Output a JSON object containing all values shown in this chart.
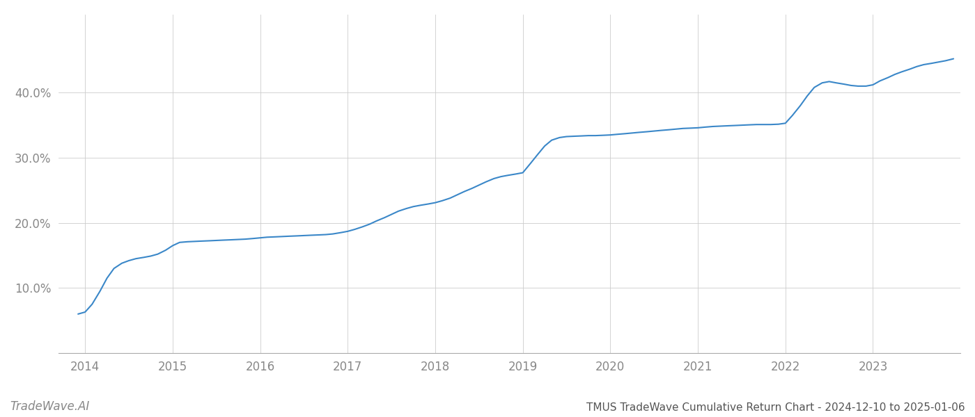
{
  "title": "TMUS TradeWave Cumulative Return Chart - 2024-12-10 to 2025-01-06",
  "watermark": "TradeWave.AI",
  "line_color": "#3a87c8",
  "background_color": "#ffffff",
  "grid_color": "#cccccc",
  "x_values": [
    2013.92,
    2014.0,
    2014.08,
    2014.17,
    2014.25,
    2014.33,
    2014.42,
    2014.5,
    2014.58,
    2014.67,
    2014.75,
    2014.83,
    2014.92,
    2015.0,
    2015.08,
    2015.17,
    2015.25,
    2015.33,
    2015.42,
    2015.5,
    2015.58,
    2015.67,
    2015.75,
    2015.83,
    2015.92,
    2016.0,
    2016.08,
    2016.17,
    2016.25,
    2016.33,
    2016.42,
    2016.5,
    2016.58,
    2016.67,
    2016.75,
    2016.83,
    2016.92,
    2017.0,
    2017.08,
    2017.17,
    2017.25,
    2017.33,
    2017.42,
    2017.5,
    2017.58,
    2017.67,
    2017.75,
    2017.83,
    2017.92,
    2018.0,
    2018.08,
    2018.17,
    2018.25,
    2018.33,
    2018.42,
    2018.5,
    2018.58,
    2018.67,
    2018.75,
    2018.83,
    2018.92,
    2019.0,
    2019.08,
    2019.17,
    2019.25,
    2019.33,
    2019.42,
    2019.5,
    2019.58,
    2019.67,
    2019.75,
    2019.83,
    2019.92,
    2020.0,
    2020.08,
    2020.17,
    2020.25,
    2020.33,
    2020.42,
    2020.5,
    2020.58,
    2020.67,
    2020.75,
    2020.83,
    2020.92,
    2021.0,
    2021.08,
    2021.17,
    2021.25,
    2021.33,
    2021.42,
    2021.5,
    2021.58,
    2021.67,
    2021.75,
    2021.83,
    2021.92,
    2022.0,
    2022.08,
    2022.17,
    2022.25,
    2022.33,
    2022.42,
    2022.5,
    2022.58,
    2022.67,
    2022.75,
    2022.83,
    2022.92,
    2023.0,
    2023.08,
    2023.17,
    2023.25,
    2023.33,
    2023.42,
    2023.5,
    2023.58,
    2023.67,
    2023.75,
    2023.83,
    2023.92
  ],
  "y_values": [
    6.0,
    6.3,
    7.5,
    9.5,
    11.5,
    13.0,
    13.8,
    14.2,
    14.5,
    14.7,
    14.9,
    15.2,
    15.8,
    16.5,
    17.0,
    17.1,
    17.15,
    17.2,
    17.25,
    17.3,
    17.35,
    17.4,
    17.45,
    17.5,
    17.6,
    17.7,
    17.8,
    17.85,
    17.9,
    17.95,
    18.0,
    18.05,
    18.1,
    18.15,
    18.2,
    18.3,
    18.5,
    18.7,
    19.0,
    19.4,
    19.8,
    20.3,
    20.8,
    21.3,
    21.8,
    22.2,
    22.5,
    22.7,
    22.9,
    23.1,
    23.4,
    23.8,
    24.3,
    24.8,
    25.3,
    25.8,
    26.3,
    26.8,
    27.1,
    27.3,
    27.5,
    27.7,
    29.0,
    30.5,
    31.8,
    32.7,
    33.1,
    33.25,
    33.3,
    33.35,
    33.4,
    33.4,
    33.45,
    33.5,
    33.6,
    33.7,
    33.8,
    33.9,
    34.0,
    34.1,
    34.2,
    34.3,
    34.4,
    34.5,
    34.55,
    34.6,
    34.7,
    34.8,
    34.85,
    34.9,
    34.95,
    35.0,
    35.05,
    35.1,
    35.1,
    35.1,
    35.15,
    35.3,
    36.5,
    38.0,
    39.5,
    40.8,
    41.5,
    41.7,
    41.5,
    41.3,
    41.1,
    41.0,
    41.0,
    41.2,
    41.8,
    42.3,
    42.8,
    43.2,
    43.6,
    44.0,
    44.3,
    44.5,
    44.7,
    44.9,
    45.2
  ],
  "xlim": [
    2013.7,
    2024.0
  ],
  "ylim": [
    0,
    52
  ],
  "yticks": [
    10.0,
    20.0,
    30.0,
    40.0
  ],
  "ytick_labels": [
    "10.0%",
    "20.0%",
    "30.0%",
    "40.0%"
  ],
  "xticks": [
    2014,
    2015,
    2016,
    2017,
    2018,
    2019,
    2020,
    2021,
    2022,
    2023
  ],
  "tick_color": "#888888",
  "axis_color": "#aaaaaa",
  "line_width": 1.5,
  "title_fontsize": 11,
  "tick_fontsize": 12,
  "watermark_fontsize": 12
}
